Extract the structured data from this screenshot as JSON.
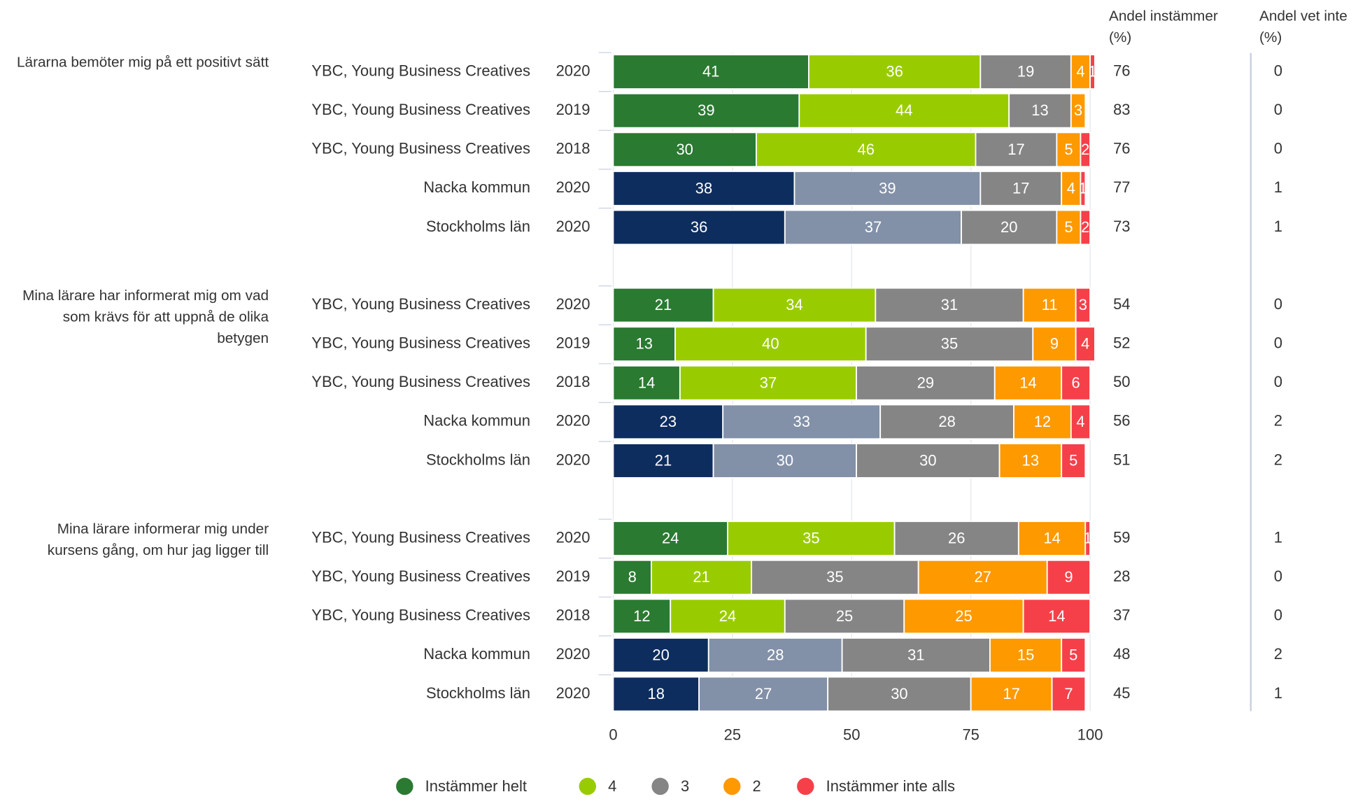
{
  "chart_data": {
    "type": "stacked-bar-horizontal",
    "xlim": [
      0,
      100
    ],
    "xticks": [
      0,
      25,
      50,
      75,
      100
    ],
    "grid": true,
    "legend": "bottom",
    "column_headers": [
      "Andel instämmer (%)",
      "Andel vet inte (%)"
    ],
    "questions": [
      "Lärarna bemöter mig på ett positivt sätt",
      "Mina lärare har informerat mig om vad som krävs för att uppnå de olika betygen",
      "Mina lärare informerar mig under kursens gång, om hur jag ligger till"
    ],
    "units": [
      "YBC, Young Business Creatives",
      "YBC, Young Business Creatives",
      "YBC, Young Business Creatives",
      "Nacka kommun",
      "Stockholms län",
      "YBC, Young Business Creatives",
      "YBC, Young Business Creatives",
      "YBC, Young Business Creatives",
      "Nacka kommun",
      "Stockholms län",
      "YBC, Young Business Creatives",
      "YBC, Young Business Creatives",
      "YBC, Young Business Creatives",
      "Nacka kommun",
      "Stockholms län"
    ],
    "years": [
      "2020",
      "2019",
      "2018",
      "2020",
      "2020",
      "2020",
      "2019",
      "2018",
      "2020",
      "2020",
      "2020",
      "2019",
      "2018",
      "2020",
      "2020"
    ],
    "series": [
      {
        "name": "Instämmer helt",
        "color": "#2a7a31",
        "colors": [
          "#2a7a31",
          "#2a7a31",
          "#2a7a31",
          "#0d2d5e",
          "#0d2d5e",
          "#2a7a31",
          "#2a7a31",
          "#2a7a31",
          "#0d2d5e",
          "#0d2d5e",
          "#2a7a31",
          "#2a7a31",
          "#2a7a31",
          "#0d2d5e",
          "#0d2d5e"
        ],
        "values": [
          41,
          39,
          30,
          38,
          36,
          21,
          13,
          14,
          23,
          21,
          24,
          8,
          12,
          20,
          18
        ]
      },
      {
        "name": "4",
        "color": "#99cc00",
        "colors": [
          "#99cc00",
          "#99cc00",
          "#99cc00",
          "#8290a8",
          "#8290a8",
          "#99cc00",
          "#99cc00",
          "#99cc00",
          "#8290a8",
          "#8290a8",
          "#99cc00",
          "#99cc00",
          "#99cc00",
          "#8290a8",
          "#8290a8"
        ],
        "values": [
          36,
          44,
          46,
          39,
          37,
          34,
          40,
          37,
          33,
          30,
          35,
          21,
          24,
          28,
          27
        ]
      },
      {
        "name": "3",
        "color": "#858585",
        "values": [
          19,
          13,
          17,
          17,
          20,
          31,
          35,
          29,
          28,
          30,
          26,
          35,
          25,
          31,
          30
        ]
      },
      {
        "name": "2",
        "color": "#ff9900",
        "values": [
          4,
          3,
          5,
          4,
          5,
          11,
          9,
          14,
          12,
          13,
          14,
          27,
          25,
          15,
          17
        ]
      },
      {
        "name": "Instämmer inte alls",
        "color": "#f5404a",
        "values": [
          1,
          0,
          2,
          1,
          2,
          3,
          4,
          6,
          4,
          5,
          1,
          9,
          14,
          5,
          7
        ]
      }
    ],
    "andel_instammer": [
      76,
      83,
      76,
      77,
      73,
      54,
      52,
      50,
      56,
      51,
      59,
      28,
      37,
      48,
      45
    ],
    "andel_vet_inte": [
      0,
      0,
      0,
      1,
      1,
      0,
      0,
      0,
      2,
      2,
      1,
      0,
      0,
      2,
      1
    ]
  }
}
